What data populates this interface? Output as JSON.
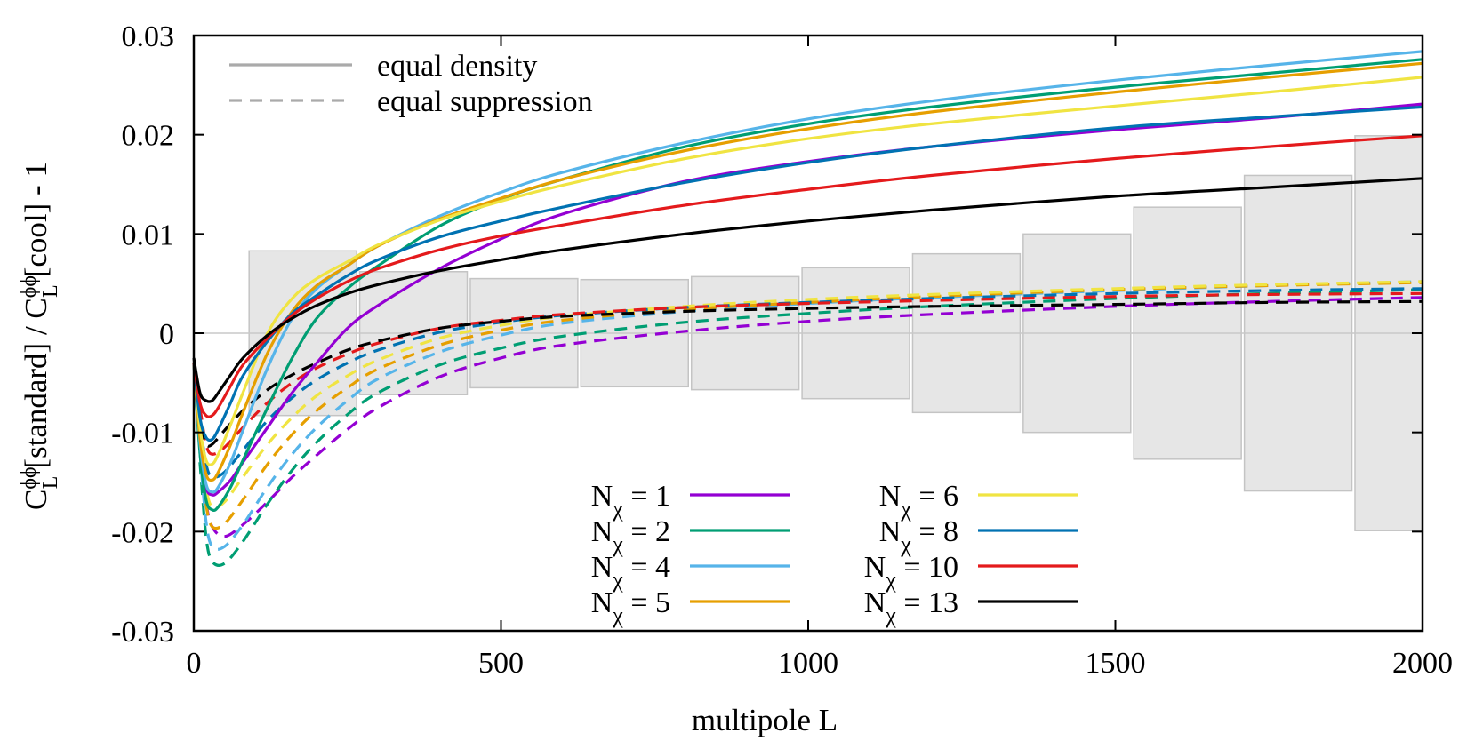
{
  "chart_data": {
    "type": "line",
    "xlabel": "multipole L",
    "ylabel": {
      "c1": "C",
      "sup1": "ϕϕ",
      "sub1": "L",
      "mid": "[standard] / ",
      "c2": "C",
      "sup2": "ϕϕ",
      "sub2": "L",
      "end": "[cool] - 1"
    },
    "xlim": [
      0,
      2000
    ],
    "ylim": [
      -0.03,
      0.03
    ],
    "xticks": [
      0,
      500,
      1000,
      1500,
      2000
    ],
    "xtick_labels": [
      "0",
      "500",
      "1000",
      "1500",
      "2000"
    ],
    "yticks": [
      -0.03,
      -0.02,
      -0.01,
      0,
      0.01,
      0.02,
      0.03
    ],
    "ytick_labels": [
      "-0.03",
      "-0.02",
      "-0.01",
      "0",
      "0.01",
      "0.02",
      "0.03"
    ],
    "grid": false,
    "zero_line": true,
    "style_legend": {
      "placement": "top-left",
      "entries": [
        {
          "label": "equal density",
          "dash": "solid",
          "color": "#aaaaaa"
        },
        {
          "label": "equal suppression",
          "dash": "dashed",
          "color": "#aaaaaa"
        }
      ]
    },
    "legend_placement": "bottom-center",
    "error_bands": [
      {
        "x0": 90,
        "x1": 265,
        "half": 0.0083
      },
      {
        "x0": 270,
        "x1": 445,
        "half": 0.0062
      },
      {
        "x0": 450,
        "x1": 625,
        "half": 0.0055
      },
      {
        "x0": 630,
        "x1": 805,
        "half": 0.0054
      },
      {
        "x0": 810,
        "x1": 985,
        "half": 0.0057
      },
      {
        "x0": 990,
        "x1": 1165,
        "half": 0.0066
      },
      {
        "x0": 1170,
        "x1": 1345,
        "half": 0.008
      },
      {
        "x0": 1350,
        "x1": 1525,
        "half": 0.01
      },
      {
        "x0": 1530,
        "x1": 1705,
        "half": 0.0127
      },
      {
        "x0": 1710,
        "x1": 1885,
        "half": 0.0159
      },
      {
        "x0": 1890,
        "x1": 2000,
        "half": 0.0199
      }
    ],
    "series": [
      {
        "name": "1",
        "color": "#9400d3",
        "equal_density": {
          "x": [
            0,
            10,
            20,
            30,
            40,
            60,
            80,
            120,
            160,
            200,
            250,
            300,
            400,
            500,
            600,
            800,
            1000,
            1200,
            1500,
            1750,
            2000
          ],
          "y": [
            -0.003,
            -0.011,
            -0.0155,
            -0.0163,
            -0.016,
            -0.0148,
            -0.013,
            -0.0095,
            -0.006,
            -0.003,
            0.0005,
            0.0028,
            0.0065,
            0.0095,
            0.012,
            0.0153,
            0.0173,
            0.0188,
            0.0205,
            0.0217,
            0.0231
          ]
        },
        "equal_suppression": {
          "x": [
            10,
            20,
            30,
            50,
            80,
            120,
            160,
            200,
            250,
            300,
            400,
            500,
            600,
            800,
            1000,
            1200,
            1500,
            1750,
            2000
          ],
          "y": [
            -0.011,
            -0.017,
            -0.0195,
            -0.0205,
            -0.0193,
            -0.017,
            -0.0145,
            -0.0123,
            -0.0097,
            -0.0075,
            -0.0044,
            -0.0025,
            -0.0012,
            0.0002,
            0.0012,
            0.0019,
            0.0027,
            0.0032,
            0.0036
          ]
        }
      },
      {
        "name": "2",
        "color": "#009e73",
        "equal_density": {
          "x": [
            0,
            10,
            20,
            30,
            40,
            60,
            80,
            120,
            160,
            200,
            250,
            300,
            400,
            500,
            600,
            800,
            1000,
            1200,
            1500,
            1750,
            2000
          ],
          "y": [
            -0.003,
            -0.012,
            -0.0168,
            -0.0178,
            -0.0175,
            -0.0155,
            -0.0128,
            -0.0075,
            -0.0025,
            0.0015,
            0.0045,
            0.0068,
            0.0108,
            0.0135,
            0.0155,
            0.0188,
            0.0211,
            0.0228,
            0.0248,
            0.0262,
            0.0276
          ]
        },
        "equal_suppression": {
          "x": [
            10,
            20,
            30,
            50,
            80,
            120,
            160,
            200,
            250,
            300,
            400,
            500,
            600,
            800,
            1000,
            1200,
            1500,
            1750,
            2000
          ],
          "y": [
            -0.013,
            -0.0205,
            -0.023,
            -0.0232,
            -0.021,
            -0.0172,
            -0.0138,
            -0.011,
            -0.0082,
            -0.006,
            -0.0032,
            -0.0015,
            -0.0003,
            0.0011,
            0.002,
            0.0027,
            0.0035,
            0.004,
            0.0044
          ]
        }
      },
      {
        "name": "4",
        "color": "#56b4e9",
        "equal_density": {
          "x": [
            0,
            10,
            20,
            30,
            40,
            60,
            80,
            120,
            160,
            200,
            250,
            300,
            400,
            500,
            600,
            800,
            1000,
            1200,
            1500,
            1750,
            2000
          ],
          "y": [
            -0.003,
            -0.011,
            -0.0152,
            -0.016,
            -0.0155,
            -0.013,
            -0.0098,
            -0.0035,
            0.0015,
            0.0045,
            0.0068,
            0.0088,
            0.0118,
            0.0142,
            0.0162,
            0.0192,
            0.0216,
            0.0234,
            0.0255,
            0.027,
            0.0284
          ]
        },
        "equal_suppression": {
          "x": [
            10,
            20,
            30,
            50,
            80,
            120,
            160,
            200,
            250,
            300,
            400,
            500,
            600,
            800,
            1000,
            1200,
            1500,
            1750,
            2000
          ],
          "y": [
            -0.012,
            -0.019,
            -0.0215,
            -0.0215,
            -0.0193,
            -0.0155,
            -0.0122,
            -0.0095,
            -0.0068,
            -0.0046,
            -0.0019,
            -0.0002,
            0.001,
            0.0022,
            0.003,
            0.0036,
            0.0043,
            0.0048,
            0.0052
          ]
        }
      },
      {
        "name": "5",
        "color": "#e69f00",
        "equal_density": {
          "x": [
            0,
            10,
            20,
            30,
            40,
            60,
            80,
            120,
            160,
            200,
            250,
            300,
            400,
            500,
            600,
            800,
            1000,
            1200,
            1500,
            1750,
            2000
          ],
          "y": [
            -0.003,
            -0.0105,
            -0.0142,
            -0.0148,
            -0.014,
            -0.0112,
            -0.008,
            -0.002,
            0.0022,
            0.0048,
            0.0068,
            0.0088,
            0.0115,
            0.0136,
            0.0155,
            0.0184,
            0.0206,
            0.0223,
            0.0243,
            0.0258,
            0.0272
          ]
        },
        "equal_suppression": {
          "x": [
            10,
            20,
            30,
            50,
            80,
            120,
            160,
            200,
            250,
            300,
            400,
            500,
            600,
            800,
            1000,
            1200,
            1500,
            1750,
            2000
          ],
          "y": [
            -0.011,
            -0.0172,
            -0.0195,
            -0.0192,
            -0.0168,
            -0.0132,
            -0.0102,
            -0.0078,
            -0.0055,
            -0.0036,
            -0.0012,
            0.0003,
            0.0013,
            0.0024,
            0.0031,
            0.0037,
            0.0044,
            0.0048,
            0.0051
          ]
        }
      },
      {
        "name": "6",
        "color": "#f0e442",
        "equal_density": {
          "x": [
            0,
            10,
            20,
            30,
            40,
            60,
            80,
            120,
            160,
            200,
            250,
            300,
            400,
            500,
            600,
            800,
            1000,
            1200,
            1500,
            1750,
            2000
          ],
          "y": [
            -0.003,
            -0.0095,
            -0.0128,
            -0.0132,
            -0.0122,
            -0.0092,
            -0.006,
            0.0,
            0.0035,
            0.0055,
            0.0072,
            0.0089,
            0.0114,
            0.0133,
            0.0149,
            0.0176,
            0.0196,
            0.0211,
            0.0229,
            0.0243,
            0.0258
          ]
        },
        "equal_suppression": {
          "x": [
            10,
            20,
            30,
            50,
            80,
            120,
            160,
            200,
            250,
            300,
            400,
            500,
            600,
            800,
            1000,
            1200,
            1500,
            1750,
            2000
          ],
          "y": [
            -0.01,
            -0.0155,
            -0.0175,
            -0.017,
            -0.0145,
            -0.0112,
            -0.0085,
            -0.0063,
            -0.0043,
            -0.0027,
            -0.0005,
            0.0008,
            0.0017,
            0.0027,
            0.0034,
            0.0039,
            0.0045,
            0.0049,
            0.0052
          ]
        }
      },
      {
        "name": "8",
        "color": "#0072b2",
        "equal_density": {
          "x": [
            0,
            10,
            20,
            30,
            40,
            60,
            80,
            120,
            160,
            200,
            250,
            300,
            400,
            500,
            600,
            800,
            1000,
            1200,
            1500,
            1750,
            2000
          ],
          "y": [
            -0.003,
            -0.0085,
            -0.0105,
            -0.0107,
            -0.0097,
            -0.007,
            -0.0043,
            -0.0008,
            0.002,
            0.0038,
            0.0058,
            0.0074,
            0.0097,
            0.0113,
            0.0127,
            0.0152,
            0.0172,
            0.0188,
            0.0207,
            0.0218,
            0.0228
          ]
        },
        "equal_suppression": {
          "x": [
            10,
            20,
            30,
            50,
            80,
            120,
            160,
            200,
            250,
            300,
            400,
            500,
            600,
            800,
            1000,
            1200,
            1500,
            1750,
            2000
          ],
          "y": [
            -0.009,
            -0.0132,
            -0.0145,
            -0.014,
            -0.0118,
            -0.0088,
            -0.0065,
            -0.0047,
            -0.003,
            -0.0017,
            0.0001,
            0.0011,
            0.0018,
            0.0026,
            0.0031,
            0.0035,
            0.004,
            0.0043,
            0.0045
          ]
        }
      },
      {
        "name": "10",
        "color": "#e41a1c",
        "equal_density": {
          "x": [
            0,
            10,
            20,
            30,
            40,
            60,
            80,
            120,
            160,
            200,
            250,
            300,
            400,
            500,
            600,
            800,
            1000,
            1200,
            1500,
            1750,
            2000
          ],
          "y": [
            -0.003,
            -0.007,
            -0.0083,
            -0.0083,
            -0.0075,
            -0.0053,
            -0.0032,
            -0.0005,
            0.0018,
            0.0035,
            0.0052,
            0.0065,
            0.0084,
            0.0098,
            0.0109,
            0.0129,
            0.0145,
            0.0159,
            0.0176,
            0.0188,
            0.0199
          ]
        },
        "equal_suppression": {
          "x": [
            10,
            20,
            30,
            50,
            80,
            120,
            160,
            200,
            250,
            300,
            400,
            500,
            600,
            800,
            1000,
            1200,
            1500,
            1750,
            2000
          ],
          "y": [
            -0.0075,
            -0.0112,
            -0.0122,
            -0.0115,
            -0.0095,
            -0.007,
            -0.005,
            -0.0035,
            -0.0021,
            -0.001,
            0.0005,
            0.0013,
            0.0019,
            0.0026,
            0.003,
            0.0033,
            0.0037,
            0.0039,
            0.004
          ]
        }
      },
      {
        "name": "13",
        "color": "#000000",
        "equal_density": {
          "x": [
            0,
            10,
            20,
            30,
            40,
            60,
            80,
            120,
            160,
            200,
            250,
            300,
            400,
            500,
            600,
            800,
            1000,
            1200,
            1500,
            1750,
            2000
          ],
          "y": [
            -0.0025,
            -0.006,
            -0.0068,
            -0.0068,
            -0.006,
            -0.0042,
            -0.0025,
            -0.0002,
            0.0015,
            0.0028,
            0.004,
            0.0049,
            0.0063,
            0.0074,
            0.0084,
            0.01,
            0.0113,
            0.0124,
            0.0138,
            0.0147,
            0.0156
          ]
        },
        "equal_suppression": {
          "x": [
            10,
            20,
            30,
            50,
            80,
            120,
            160,
            200,
            250,
            300,
            400,
            500,
            600,
            800,
            1000,
            1200,
            1500,
            1750,
            2000
          ],
          "y": [
            -0.0095,
            -0.0112,
            -0.0112,
            -0.0098,
            -0.0078,
            -0.0057,
            -0.0042,
            -0.003,
            -0.0017,
            -0.0008,
            0.0005,
            0.0012,
            0.0017,
            0.0022,
            0.0025,
            0.0027,
            0.0029,
            0.0031,
            0.0032
          ]
        }
      }
    ],
    "legend": {
      "prefix": "N",
      "sub": "χ",
      "eq": " = ",
      "left": [
        "1",
        "2",
        "4",
        "5"
      ],
      "right": [
        "6",
        "8",
        "10",
        "13"
      ]
    }
  }
}
